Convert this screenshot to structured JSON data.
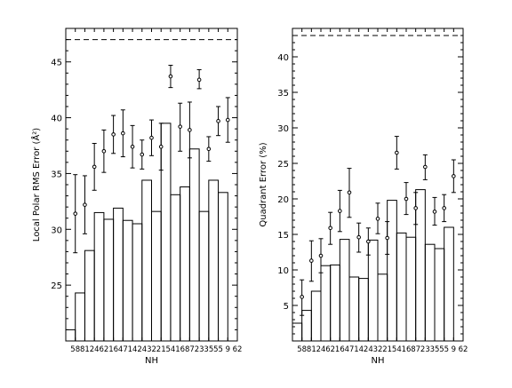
{
  "chart_data": [
    {
      "type": "bar",
      "xlabel": "NH",
      "ylabel": "Local Polar RMS Error (Å²)",
      "ylim": [
        20,
        48
      ],
      "yticks": [
        25,
        30,
        35,
        40,
        45
      ],
      "reference_line": 47,
      "categories": [
        "58",
        "81",
        "24",
        "62",
        "16",
        "47",
        "14",
        "24",
        "32",
        "21",
        "54",
        "16",
        "87",
        "23",
        "35",
        "55",
        "9",
        "62"
      ],
      "values": [
        21,
        24.3,
        28.1,
        31.5,
        30.9,
        31.9,
        30.8,
        30.5,
        34.4,
        31.6,
        39.5,
        33.1,
        33.8,
        37.2,
        31.6,
        34.4,
        33.3,
        null
      ],
      "points": {
        "values": [
          31.4,
          32.2,
          35.6,
          37.0,
          38.5,
          38.6,
          37.4,
          36.7,
          38.2,
          37.4,
          43.7,
          39.2,
          38.9,
          43.4,
          37.2,
          39.7,
          39.8
        ],
        "err_low": [
          27.9,
          29.6,
          33.5,
          35.1,
          36.8,
          36.5,
          35.5,
          35.4,
          36.6,
          35.3,
          42.7,
          37.0,
          36.4,
          42.6,
          36.1,
          38.4,
          37.8
        ],
        "err_high": [
          34.9,
          34.8,
          37.7,
          38.9,
          40.2,
          40.7,
          39.3,
          38.0,
          39.8,
          39.5,
          44.7,
          41.3,
          41.4,
          44.3,
          38.3,
          41.0,
          41.8
        ]
      },
      "grid": false,
      "legend": "none"
    },
    {
      "type": "bar",
      "xlabel": "NH",
      "ylabel": "Quadrant Error (%)",
      "ylim": [
        0,
        44
      ],
      "yticks": [
        5,
        10,
        15,
        20,
        25,
        30,
        35,
        40
      ],
      "reference_line": 43,
      "categories": [
        "58",
        "81",
        "24",
        "62",
        "16",
        "47",
        "14",
        "24",
        "32",
        "21",
        "54",
        "16",
        "87",
        "23",
        "35",
        "55",
        "9",
        "62"
      ],
      "values": [
        2.5,
        4.3,
        7.0,
        10.6,
        10.7,
        14.3,
        9.0,
        8.8,
        14.2,
        9.4,
        19.8,
        15.2,
        14.6,
        21.3,
        13.6,
        13.0,
        16.0,
        null
      ],
      "points": {
        "values": [
          6.2,
          11.3,
          12.0,
          15.9,
          18.3,
          20.9,
          14.6,
          14.0,
          17.2,
          14.5,
          26.5,
          20.0,
          18.7,
          24.5,
          18.2,
          18.7,
          23.2
        ],
        "err_low": [
          3.6,
          8.4,
          9.6,
          13.6,
          15.4,
          17.4,
          12.5,
          12.1,
          15.1,
          12.2,
          24.2,
          17.8,
          16.4,
          22.7,
          16.3,
          16.8,
          20.9
        ],
        "err_high": [
          8.6,
          14.1,
          14.4,
          18.1,
          21.2,
          24.3,
          16.6,
          15.9,
          19.4,
          16.8,
          28.8,
          22.3,
          20.9,
          26.2,
          20.2,
          20.6,
          25.5
        ]
      },
      "grid": false,
      "legend": "none"
    }
  ]
}
